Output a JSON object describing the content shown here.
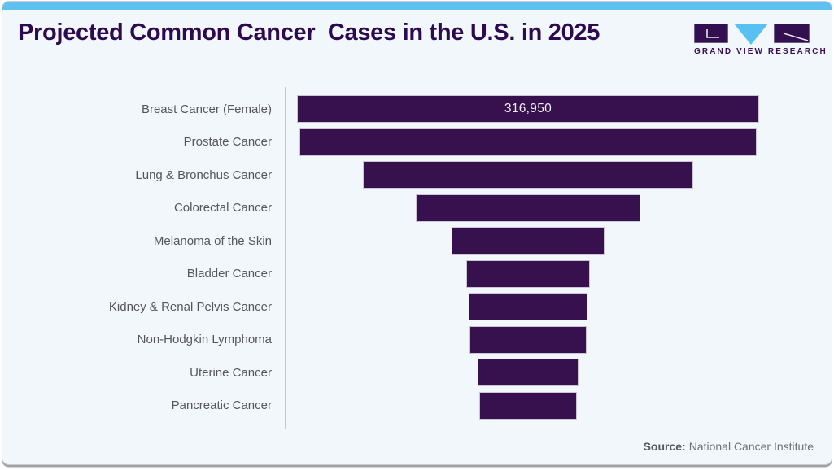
{
  "header": {
    "title": "Projected Common Cancer  Cases in the U.S. in 2025",
    "logo": {
      "brand": "GRAND VIEW RESEARCH"
    }
  },
  "footer": {
    "source_label": "Source:",
    "source_text": "National Cancer Institute"
  },
  "colors": {
    "accent_cyan": "#5fc1ef",
    "bar_purple": "#37114d",
    "title_purple": "#2d0a50",
    "background": "#f1f7fa",
    "label_gray": "#55575c"
  },
  "chart_data": {
    "type": "bar",
    "orientation": "horizontal-centered-funnel",
    "title": "Projected Common Cancer  Cases in the U.S. in 2025",
    "categories": [
      "Breast Cancer (Female)",
      "Prostate Cancer",
      "Lung & Bronchus Cancer",
      "Colorectal Cancer",
      "Melanoma of the Skin",
      "Bladder Cancer",
      "Kidney & Renal Pelvis Cancer",
      "Non-Hodgkin Lymphoma",
      "Uterine Cancer",
      "Pancreatic Cancer"
    ],
    "values": [
      316950,
      313780,
      226650,
      154270,
      104960,
      84870,
      80980,
      80350,
      69120,
      67440
    ],
    "value_labels_visible": [
      "316,950",
      "",
      "",
      "",
      "",
      "",
      "",
      "",
      "",
      ""
    ],
    "axis_max": 316950,
    "bar_color": "#37114d",
    "grid": false,
    "legend": false,
    "source": "National Cancer Institute"
  }
}
